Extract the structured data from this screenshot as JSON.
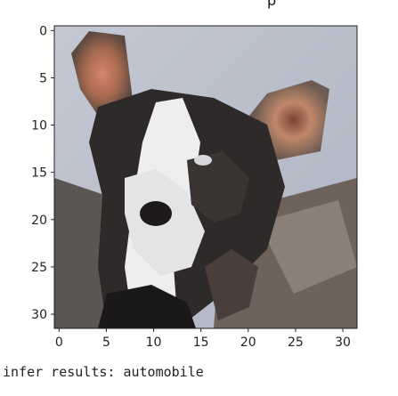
{
  "header": {
    "title_fragment": "p"
  },
  "chart_data": {
    "type": "heatmap",
    "title": "",
    "xlabel": "",
    "ylabel": "",
    "x_ticks": [
      "0",
      "5",
      "10",
      "15",
      "20",
      "25",
      "30"
    ],
    "y_ticks": [
      "0",
      "5",
      "10",
      "15",
      "20",
      "25",
      "30"
    ],
    "xlim": [
      -0.5,
      31.5
    ],
    "ylim": [
      31.5,
      -0.5
    ],
    "grid": false,
    "image_size": [
      32,
      32
    ]
  },
  "output": {
    "infer_text": "infer results: automobile"
  }
}
